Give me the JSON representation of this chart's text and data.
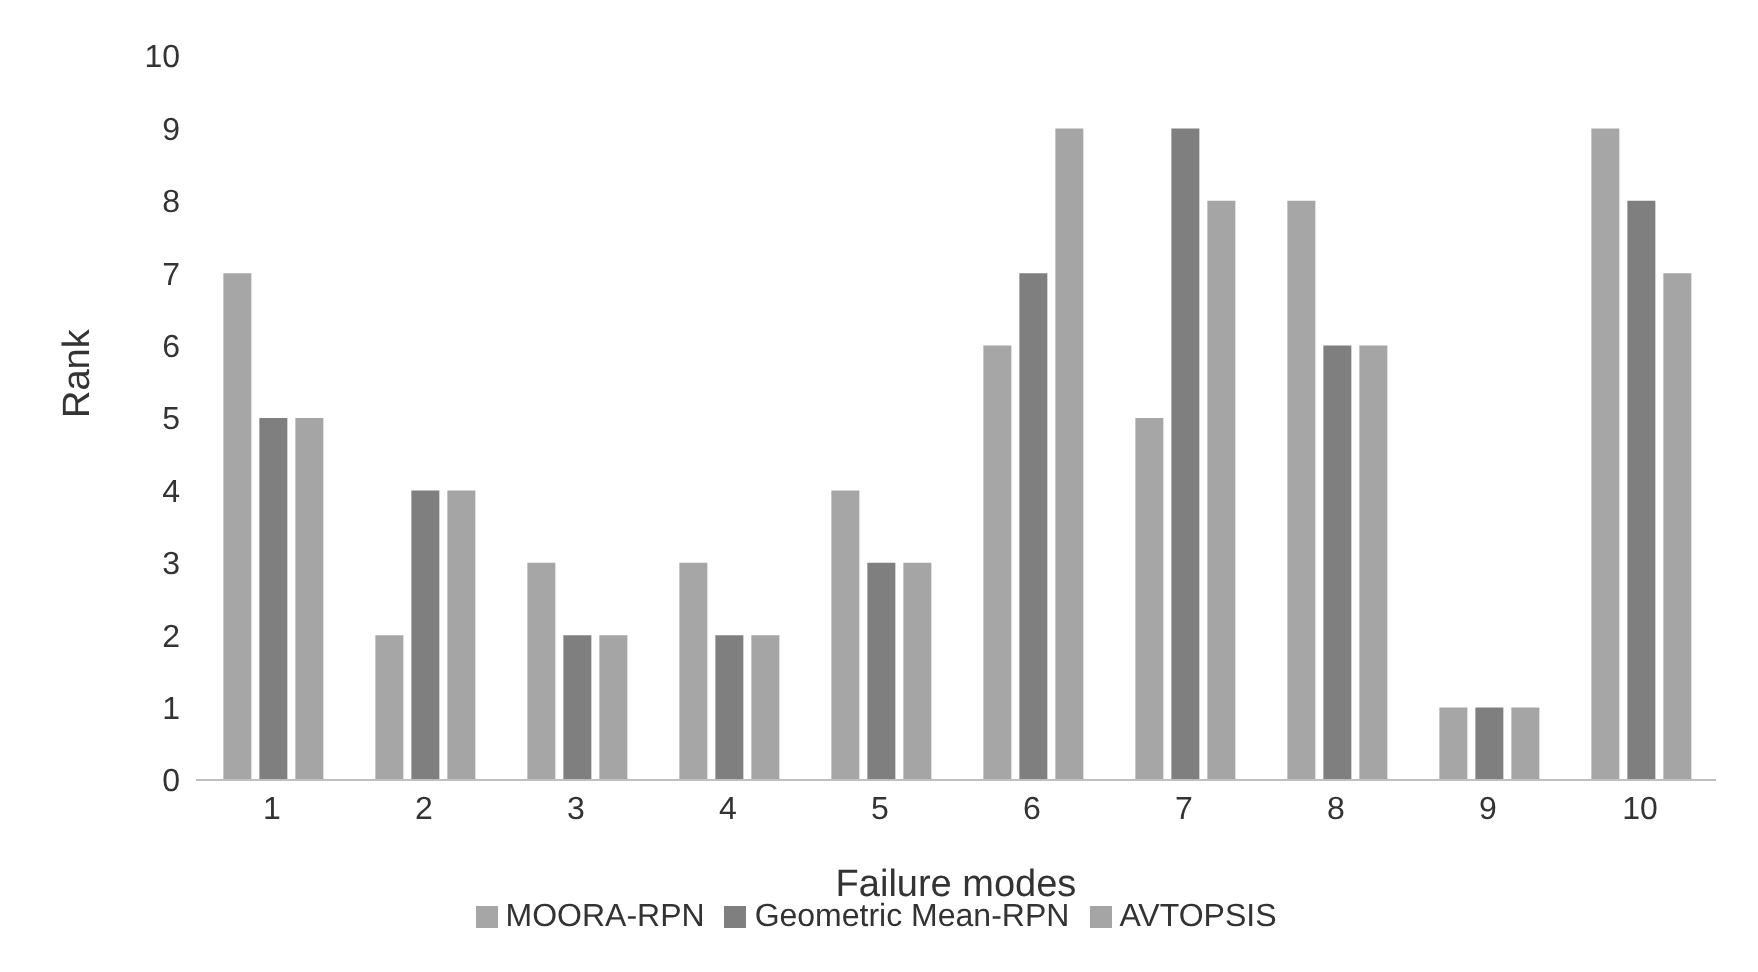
{
  "chart_data": {
    "type": "bar",
    "xlabel": "Failure modes",
    "ylabel": "Rank",
    "categories": [
      "1",
      "2",
      "3",
      "4",
      "5",
      "6",
      "7",
      "8",
      "9",
      "10"
    ],
    "series": [
      {
        "name": "MOORA-RPN",
        "color": "#a6a6a6",
        "values": [
          7,
          2,
          3,
          3,
          4,
          6,
          5,
          8,
          1,
          9
        ]
      },
      {
        "name": "Geometric Mean-RPN",
        "color": "#7f7f7f",
        "values": [
          5,
          4,
          2,
          2,
          3,
          7,
          9,
          6,
          1,
          8
        ]
      },
      {
        "name": "AVTOPSIS",
        "color": "#a5a5a5",
        "values": [
          5,
          4,
          2,
          2,
          3,
          9,
          8,
          6,
          1,
          7
        ]
      }
    ],
    "ylim": [
      0,
      10
    ],
    "yticks": [
      0,
      1,
      2,
      3,
      4,
      5,
      6,
      7,
      8,
      9,
      10
    ],
    "grid": false,
    "legend": "bottom"
  }
}
